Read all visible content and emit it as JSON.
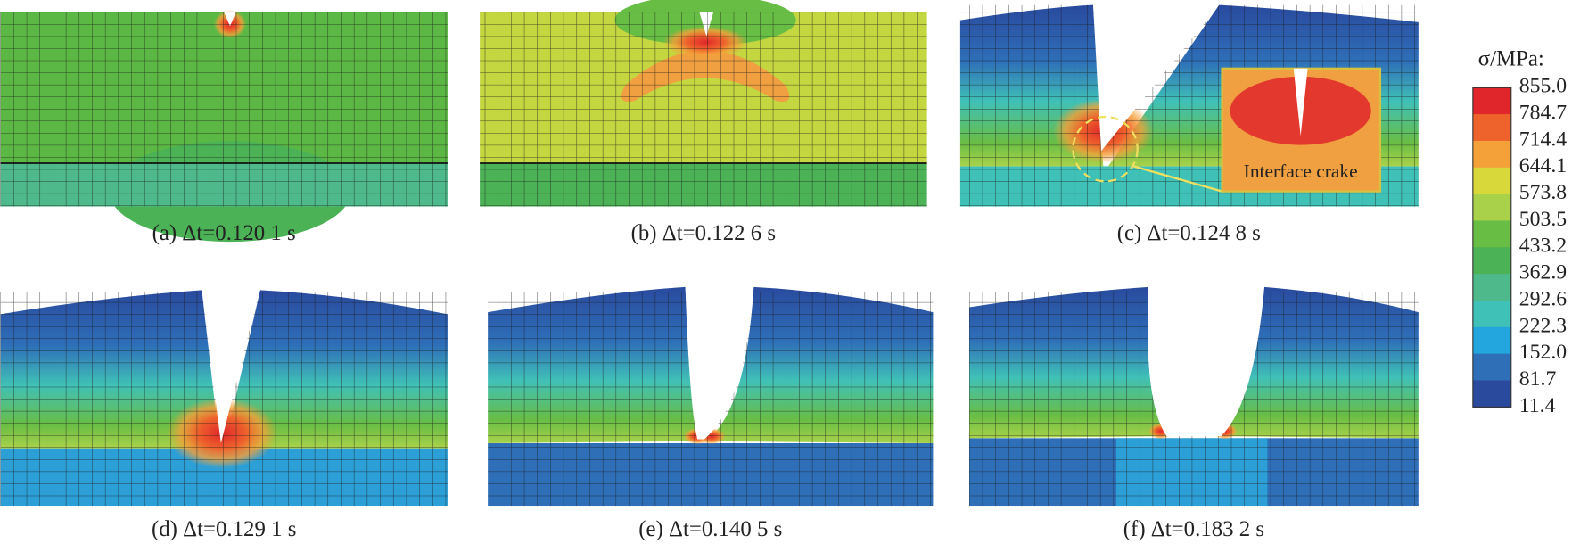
{
  "panels": [
    {
      "caption": "(a) Δt=0.120 1 s"
    },
    {
      "caption": "(b) Δt=0.122 6 s"
    },
    {
      "caption": "(c) Δt=0.124 8 s",
      "annotation": "Interface crake"
    },
    {
      "caption": "(d) Δt=0.129 1 s"
    },
    {
      "caption": "(e) Δt=0.140 5 s"
    },
    {
      "caption": "(f) Δt=0.183 2 s"
    }
  ],
  "legend": {
    "title": "σ/MPa:",
    "labels": [
      "855.0",
      "784.7",
      "714.4",
      "644.1",
      "573.8",
      "503.5",
      "433.2",
      "362.9",
      "292.6",
      "222.3",
      "152.0",
      "81.7",
      "11.4"
    ],
    "colors": [
      "#e0262a",
      "#ee632c",
      "#f5a13a",
      "#d8d83a",
      "#a9d24a",
      "#68bd45",
      "#4bb256",
      "#4eb98a",
      "#40c1b7",
      "#23a5de",
      "#2e6fb8",
      "#2a4a9e"
    ]
  }
}
